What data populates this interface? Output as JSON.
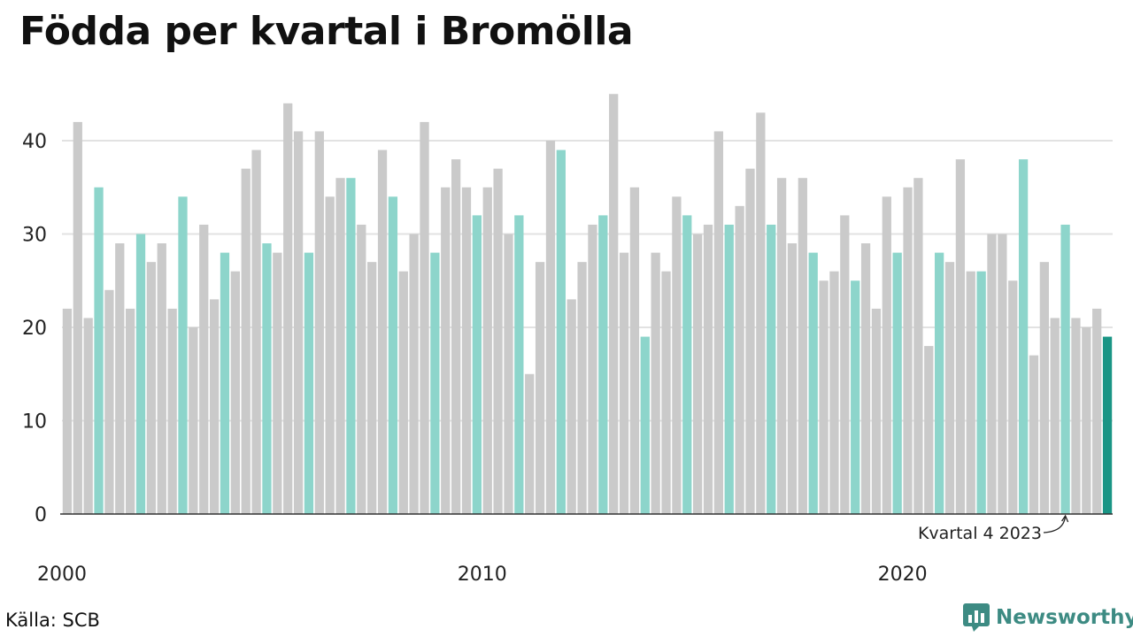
{
  "header": {
    "title": "Födda per kvartal i Bromölla"
  },
  "footer": {
    "source": "Källa: SCB",
    "brand": "Newsworthy"
  },
  "colors": {
    "bar_default": "#cacaca",
    "bar_q4": "#8dd5cb",
    "bar_latest": "#1a9585",
    "grid": "#e2e2e2",
    "axis": "#333333",
    "brand": "#3d8b83"
  },
  "chart_data": {
    "type": "bar",
    "title": "Födda per kvartal i Bromölla",
    "xlabel": "",
    "ylabel": "",
    "ylim": [
      0,
      45
    ],
    "yticks": [
      0,
      10,
      20,
      30,
      40
    ],
    "xtick_labels": [
      "2000",
      "2010",
      "2020"
    ],
    "grid": true,
    "highlight_rule": "fourth quarter bars highlighted; latest bar darkest",
    "annotation": {
      "text": "Kvartal 4 2023",
      "target_index": 95
    },
    "start_year": 2000,
    "values": [
      22,
      42,
      21,
      35,
      24,
      29,
      22,
      30,
      27,
      29,
      22,
      34,
      20,
      31,
      23,
      28,
      26,
      37,
      39,
      29,
      28,
      44,
      41,
      28,
      41,
      34,
      36,
      36,
      31,
      27,
      39,
      34,
      26,
      30,
      42,
      28,
      35,
      38,
      35,
      32,
      35,
      37,
      30,
      32,
      15,
      27,
      40,
      39,
      23,
      27,
      31,
      32,
      45,
      28,
      35,
      19,
      28,
      26,
      34,
      32,
      30,
      31,
      41,
      31,
      33,
      37,
      43,
      31,
      36,
      29,
      36,
      28,
      25,
      26,
      32,
      25,
      29,
      22,
      34,
      28,
      35,
      36,
      18,
      28,
      27,
      38,
      26,
      26,
      30,
      30,
      25,
      38,
      17,
      27,
      21,
      31,
      21,
      20,
      22,
      19
    ]
  }
}
